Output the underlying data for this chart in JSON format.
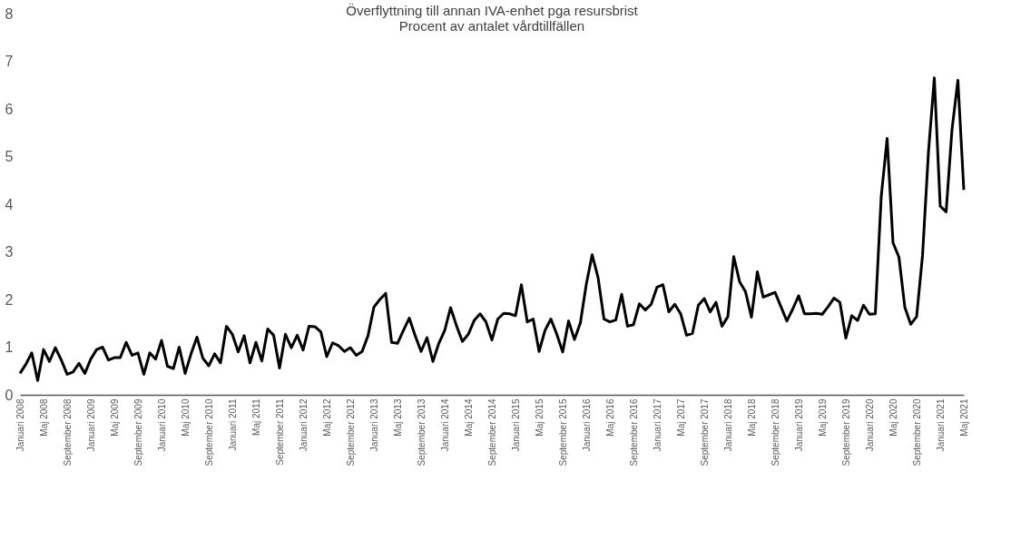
{
  "chart_data": {
    "type": "line",
    "title": [
      "Överflyttning till annan IVA-enhet pga resursbrist",
      "Procent av antalet vårdtillfällen"
    ],
    "categories": [
      "Januari 2008",
      null,
      null,
      null,
      "Maj 2008",
      null,
      null,
      null,
      "September 2008",
      null,
      null,
      null,
      "Januari 2009",
      null,
      null,
      null,
      "Maj 2009",
      null,
      null,
      null,
      "September 2009",
      null,
      null,
      null,
      "Januari 2010",
      null,
      null,
      null,
      "Maj 2010",
      null,
      null,
      null,
      "September 2010",
      null,
      null,
      null,
      "Januari 2011",
      null,
      null,
      null,
      "Maj 2011",
      null,
      null,
      null,
      "September 2011",
      null,
      null,
      null,
      "Januari 2012",
      null,
      null,
      null,
      "Maj 2012",
      null,
      null,
      null,
      "September 2012",
      null,
      null,
      null,
      "Januari 2013",
      null,
      null,
      null,
      "Maj 2013",
      null,
      null,
      null,
      "September 2013",
      null,
      null,
      null,
      "Januari 2014",
      null,
      null,
      null,
      "Maj 2014",
      null,
      null,
      null,
      "September 2014",
      null,
      null,
      null,
      "Januari 2015",
      null,
      null,
      null,
      "Maj 2015",
      null,
      null,
      null,
      "September 2015",
      null,
      null,
      null,
      "Januari 2016",
      null,
      null,
      null,
      "Maj 2016",
      null,
      null,
      null,
      "September 2016",
      null,
      null,
      null,
      "Januari 2017",
      null,
      null,
      null,
      "Maj 2017",
      null,
      null,
      null,
      "September 2017",
      null,
      null,
      null,
      "Januari 2018",
      null,
      null,
      null,
      "Maj 2018",
      null,
      null,
      null,
      "September 2018",
      null,
      null,
      null,
      "Januari 2019",
      null,
      null,
      null,
      "Maj 2019",
      null,
      null,
      null,
      "September 2019",
      null,
      null,
      null,
      "Januari 2020",
      null,
      null,
      null,
      "Maj 2020",
      null,
      null,
      null,
      "September 2020",
      null,
      null,
      null,
      "Januari 2021",
      null,
      null,
      null,
      "Maj 2021"
    ],
    "series": [
      {
        "color": "#000000",
        "values": [
          0.45,
          0.64,
          0.88,
          0.3,
          0.95,
          0.7,
          0.99,
          0.73,
          0.43,
          0.48,
          0.66,
          0.45,
          0.75,
          0.95,
          1.0,
          0.73,
          0.78,
          0.78,
          1.1,
          0.83,
          0.88,
          0.43,
          0.88,
          0.75,
          1.14,
          0.6,
          0.55,
          1.0,
          0.45,
          0.86,
          1.21,
          0.77,
          0.61,
          0.86,
          0.67,
          1.44,
          1.27,
          0.9,
          1.24,
          0.67,
          1.1,
          0.71,
          1.38,
          1.25,
          0.56,
          1.27,
          0.99,
          1.25,
          0.94,
          1.44,
          1.43,
          1.32,
          0.8,
          1.09,
          1.03,
          0.91,
          0.99,
          0.83,
          0.91,
          1.24,
          1.84,
          2.0,
          2.13,
          1.1,
          1.08,
          1.35,
          1.61,
          1.24,
          0.91,
          1.2,
          0.7,
          1.08,
          1.35,
          1.83,
          1.45,
          1.12,
          1.27,
          1.56,
          1.7,
          1.53,
          1.15,
          1.59,
          1.71,
          1.7,
          1.66,
          2.31,
          1.53,
          1.59,
          0.91,
          1.35,
          1.59,
          1.27,
          0.9,
          1.55,
          1.16,
          1.51,
          2.32,
          2.94,
          2.46,
          1.59,
          1.53,
          1.57,
          2.11,
          1.44,
          1.47,
          1.91,
          1.78,
          1.9,
          2.26,
          2.31,
          1.74,
          1.9,
          1.7,
          1.25,
          1.29,
          1.88,
          2.02,
          1.74,
          1.94,
          1.44,
          1.64,
          2.9,
          2.37,
          2.16,
          1.63,
          2.58,
          2.05,
          2.1,
          2.15,
          1.85,
          1.55,
          1.8,
          2.08,
          1.7,
          1.7,
          1.71,
          1.69,
          1.85,
          2.03,
          1.94,
          1.19,
          1.66,
          1.56,
          1.88,
          1.69,
          1.7,
          4.16,
          5.38,
          3.19,
          2.89,
          1.84,
          1.48,
          1.64,
          2.92,
          5.08,
          6.65,
          3.96,
          3.84,
          5.57,
          6.6,
          4.3
        ]
      }
    ],
    "ylim": [
      0,
      8
    ],
    "yticks": [
      0,
      1,
      2,
      3,
      4,
      5,
      6,
      7,
      8
    ],
    "grid": false,
    "marker": "none",
    "line_style": "solid"
  }
}
